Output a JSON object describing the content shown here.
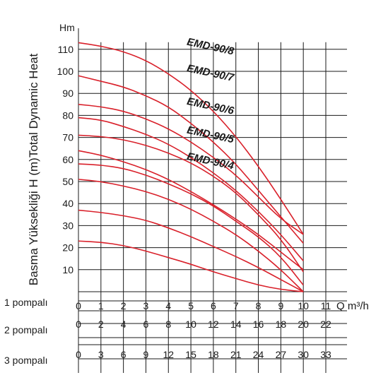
{
  "chart_data": {
    "type": "line",
    "ylabel": "Basma Yüksekliği H (m)Total Dynamic Heat",
    "y_unit": "Hm",
    "x_unit": "Q m³/h",
    "ylim": [
      0,
      115
    ],
    "yticks": [
      10,
      20,
      30,
      40,
      50,
      60,
      70,
      80,
      90,
      100,
      110
    ],
    "xlim": [
      0,
      11
    ],
    "x_axes": [
      {
        "label": "1 pompalı",
        "ticks": [
          "0",
          "1",
          "2",
          "3",
          "4",
          "5",
          "6",
          "7",
          "8",
          "9",
          "10",
          "11"
        ]
      },
      {
        "label": "2 pompalı",
        "ticks": [
          "0",
          "2",
          "4",
          "6",
          "8",
          "10",
          "12",
          "14",
          "16",
          "18",
          "20",
          "22"
        ]
      },
      {
        "label": "3 pompalı",
        "ticks": [
          "0",
          "3",
          "6",
          "9",
          "12",
          "15",
          "18",
          "21",
          "24",
          "27",
          "30",
          "33"
        ]
      }
    ],
    "curve_color": "#d9202a",
    "series": [
      {
        "x": [
          0,
          1,
          2,
          3,
          4,
          5,
          6,
          7,
          8,
          9,
          10
        ],
        "y": [
          113,
          111.5,
          109,
          105,
          99,
          91.5,
          82,
          70.5,
          57,
          42,
          26
        ]
      },
      {
        "x": [
          0,
          1,
          2,
          3,
          4,
          5,
          6,
          7,
          8,
          9,
          10
        ],
        "y": [
          98,
          95.5,
          93,
          89,
          84,
          76.5,
          68,
          58,
          46,
          34,
          22
        ]
      },
      {
        "x": [
          0,
          1,
          2,
          3,
          4,
          5,
          6,
          7,
          8,
          9,
          10
        ],
        "y": [
          85,
          84,
          82,
          78.5,
          74,
          68,
          61,
          53,
          43,
          33,
          26
        ]
      },
      {
        "x": [
          0,
          1,
          2,
          3,
          4,
          5,
          6,
          7,
          8,
          9,
          10
        ],
        "y": [
          79,
          78,
          75,
          71.5,
          67,
          61,
          54,
          46,
          36.5,
          26,
          14
        ]
      },
      {
        "x": [
          0,
          1,
          2,
          3,
          4,
          5,
          6,
          7,
          8,
          9,
          10
        ],
        "y": [
          71,
          70.5,
          69,
          66.5,
          63,
          58.5,
          52.5,
          45,
          35,
          24,
          9
        ]
      },
      {
        "x": [
          0,
          1,
          2,
          3,
          4,
          5,
          6,
          7,
          8,
          9,
          10
        ],
        "y": [
          64,
          62,
          59,
          55.5,
          51,
          45.5,
          39.5,
          33,
          26,
          18,
          10
        ]
      },
      {
        "x": [
          0,
          1,
          2,
          3,
          4,
          5,
          6,
          7,
          8,
          9,
          10
        ],
        "y": [
          58,
          57.5,
          56,
          53,
          49,
          44.5,
          39,
          32,
          25,
          16,
          3
        ]
      },
      {
        "x": [
          0,
          1,
          2,
          3,
          4,
          5,
          6,
          7,
          8,
          9,
          10
        ],
        "y": [
          51,
          50,
          48,
          45.5,
          42,
          37.5,
          32,
          26,
          18.5,
          10,
          0
        ]
      },
      {
        "x": [
          0,
          1,
          2,
          3,
          4,
          5,
          6,
          7,
          8,
          9,
          10
        ],
        "y": [
          37,
          36,
          34.5,
          32.5,
          29,
          25,
          20.5,
          16,
          11,
          5.5,
          0
        ]
      },
      {
        "x": [
          0,
          1,
          2,
          3,
          4,
          5,
          6,
          7,
          8,
          9,
          10
        ],
        "y": [
          23,
          22.5,
          21,
          18.5,
          15.5,
          12.5,
          9,
          6,
          3,
          1,
          0
        ]
      }
    ],
    "model_labels": [
      {
        "text": "EMD-90/8",
        "x": 4.8,
        "y": 112
      },
      {
        "text": "EMD-90/7",
        "x": 4.8,
        "y": 100
      },
      {
        "text": "EMD-90/6",
        "x": 4.8,
        "y": 85
      },
      {
        "text": "EMD-90/5",
        "x": 4.8,
        "y": 72
      },
      {
        "text": "EMD-90/4",
        "x": 4.8,
        "y": 60
      }
    ]
  }
}
